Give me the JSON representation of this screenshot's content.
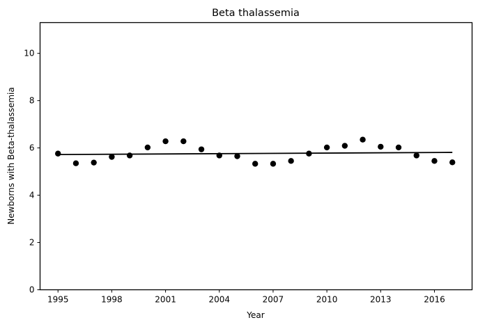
{
  "chart_data": {
    "type": "scatter",
    "title": "Beta thalassemia",
    "xlabel": "Year",
    "ylabel": "Newborns with Beta-thalassemia",
    "xlim": [
      1994,
      2018.1
    ],
    "ylim": [
      0,
      11.3
    ],
    "xticks": [
      1995,
      1998,
      2001,
      2004,
      2007,
      2010,
      2013,
      2016
    ],
    "yticks": [
      0,
      2,
      4,
      6,
      8,
      10
    ],
    "grid": false,
    "colors": {
      "points": "#000000",
      "trend": "#000000",
      "axes": "#000000"
    },
    "points": {
      "x": [
        1995,
        1996,
        1997,
        1998,
        1999,
        2000,
        2001,
        2002,
        2003,
        2004,
        2005,
        2006,
        2007,
        2008,
        2009,
        2010,
        2011,
        2012,
        2013,
        2014,
        2015,
        2016,
        2017
      ],
      "y": [
        5.76,
        5.35,
        5.38,
        5.62,
        5.68,
        6.02,
        6.28,
        6.28,
        5.94,
        5.68,
        5.65,
        5.33,
        5.33,
        5.45,
        5.76,
        6.02,
        6.09,
        6.35,
        6.05,
        6.02,
        5.68,
        5.45,
        5.39
      ]
    },
    "trend_line": {
      "x": [
        1995,
        2017
      ],
      "y": [
        5.72,
        5.81
      ]
    }
  }
}
